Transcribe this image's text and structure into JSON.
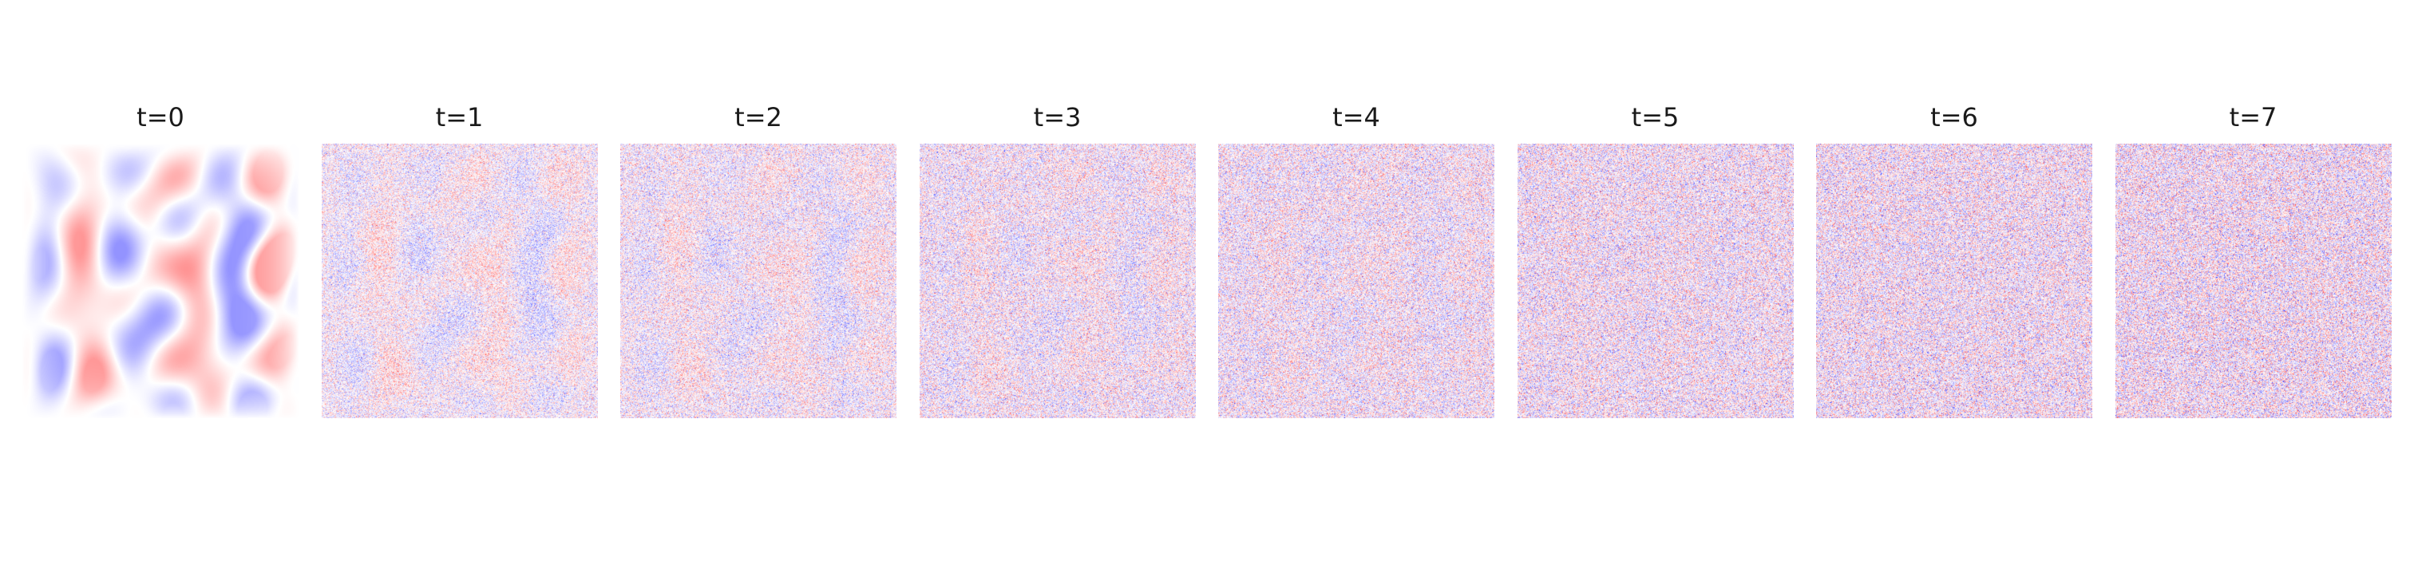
{
  "chart_data": {
    "type": "heatmap",
    "colormap": "bwr",
    "axes_visible": false,
    "panels": [
      {
        "title": "t=0",
        "noise_level": 0.0
      },
      {
        "title": "t=1",
        "noise_level": 0.55
      },
      {
        "title": "t=2",
        "noise_level": 0.65
      },
      {
        "title": "t=3",
        "noise_level": 0.75
      },
      {
        "title": "t=4",
        "noise_level": 0.82
      },
      {
        "title": "t=5",
        "noise_level": 0.9
      },
      {
        "title": "t=6",
        "noise_level": 0.95
      },
      {
        "title": "t=7",
        "noise_level": 1.0
      }
    ]
  },
  "colors": {
    "negative": "#3a3aff",
    "neutral": "#ffffff",
    "positive": "#ff3a3a"
  }
}
